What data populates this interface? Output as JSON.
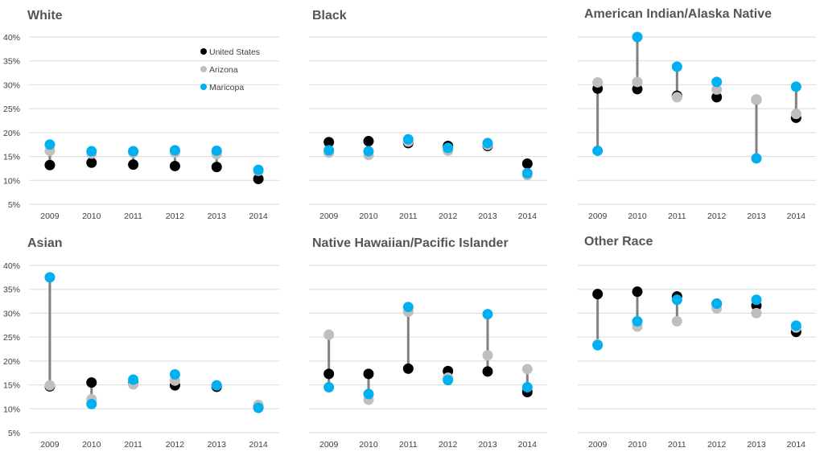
{
  "chart_data": [
    {
      "type": "scatter",
      "title": "White",
      "x": [
        "2009",
        "2010",
        "2011",
        "2012",
        "2013",
        "2014"
      ],
      "y_ticks": [
        "40%",
        "35%",
        "30%",
        "25%",
        "20%",
        "15%",
        "10%",
        "5%"
      ],
      "ylim": [
        5,
        40
      ],
      "series": [
        {
          "name": "United States",
          "values": [
            13.2,
            13.7,
            13.3,
            13.0,
            12.8,
            10.3
          ]
        },
        {
          "name": "Arizona",
          "values": [
            16.2,
            15.6,
            15.8,
            15.8,
            15.5,
            12.0
          ]
        },
        {
          "name": "Maricopa",
          "values": [
            17.5,
            16.1,
            16.1,
            16.3,
            16.2,
            12.2
          ]
        }
      ]
    },
    {
      "type": "scatter",
      "title": "Black",
      "x": [
        "2009",
        "2010",
        "2011",
        "2012",
        "2013",
        "2014"
      ],
      "y_ticks": [
        "40%",
        "35%",
        "30%",
        "25%",
        "20%",
        "15%",
        "10%",
        "5%"
      ],
      "ylim": [
        5,
        40
      ],
      "series": [
        {
          "name": "United States",
          "values": [
            18.0,
            18.2,
            17.8,
            17.2,
            17.2,
            13.5
          ]
        },
        {
          "name": "Arizona",
          "values": [
            15.8,
            15.3,
            18.1,
            16.2,
            17.4,
            11.1
          ]
        },
        {
          "name": "Maricopa",
          "values": [
            16.3,
            16.1,
            18.6,
            16.8,
            17.8,
            11.5
          ]
        }
      ]
    },
    {
      "type": "scatter",
      "title": "American Indian/Alaska Native",
      "x": [
        "2009",
        "2010",
        "2011",
        "2012",
        "2013",
        "2014"
      ],
      "y_ticks": [
        "40%",
        "35%",
        "30%",
        "25%",
        "20%",
        "15%",
        "10%",
        "5%"
      ],
      "ylim": [
        5,
        40
      ],
      "series": [
        {
          "name": "United States",
          "values": [
            29.2,
            29.1,
            27.7,
            27.4,
            26.9,
            23.1
          ]
        },
        {
          "name": "Arizona",
          "values": [
            30.5,
            30.6,
            27.4,
            29.0,
            26.9,
            23.9
          ]
        },
        {
          "name": "Maricopa",
          "values": [
            16.2,
            40.0,
            33.8,
            30.6,
            14.6,
            29.6
          ]
        }
      ]
    },
    {
      "type": "scatter",
      "title": "Asian",
      "x": [
        "2009",
        "2010",
        "2011",
        "2012",
        "2013",
        "2014"
      ],
      "y_ticks": [
        "40%",
        "35%",
        "30%",
        "25%",
        "20%",
        "15%",
        "10%",
        "5%"
      ],
      "ylim": [
        5,
        40
      ],
      "series": [
        {
          "name": "United States",
          "values": [
            14.7,
            15.5,
            15.4,
            14.9,
            14.6,
            10.4
          ]
        },
        {
          "name": "Arizona",
          "values": [
            14.9,
            12.0,
            15.1,
            15.9,
            14.9,
            10.8
          ]
        },
        {
          "name": "Maricopa",
          "values": [
            37.5,
            11.0,
            16.1,
            17.2,
            14.9,
            10.2
          ]
        }
      ]
    },
    {
      "type": "scatter",
      "title": "Native Hawaiian/Pacific Islander",
      "x": [
        "2009",
        "2010",
        "2011",
        "2012",
        "2013",
        "2014"
      ],
      "y_ticks": [
        "40%",
        "35%",
        "30%",
        "25%",
        "20%",
        "15%",
        "10%",
        "5%"
      ],
      "ylim": [
        5,
        40
      ],
      "series": [
        {
          "name": "United States",
          "values": [
            17.3,
            17.3,
            18.4,
            17.9,
            17.8,
            13.5
          ]
        },
        {
          "name": "Arizona",
          "values": [
            25.5,
            11.9,
            30.3,
            16.5,
            21.2,
            18.3
          ]
        },
        {
          "name": "Maricopa",
          "values": [
            14.5,
            13.1,
            31.3,
            16.0,
            29.8,
            14.5
          ]
        }
      ]
    },
    {
      "type": "scatter",
      "title": "Other Race",
      "x": [
        "2009",
        "2010",
        "2011",
        "2012",
        "2013",
        "2014"
      ],
      "y_ticks": [
        "40%",
        "35%",
        "30%",
        "25%",
        "20%",
        "15%",
        "10%",
        "5%"
      ],
      "ylim": [
        5,
        40
      ],
      "series": [
        {
          "name": "United States",
          "values": [
            34.0,
            34.5,
            33.5,
            32.0,
            31.6,
            26.1
          ]
        },
        {
          "name": "Arizona",
          "values": [
            23.5,
            27.2,
            28.3,
            31.0,
            30.0,
            27.0
          ]
        },
        {
          "name": "Maricopa",
          "values": [
            23.3,
            28.3,
            32.8,
            32.0,
            32.8,
            27.4
          ]
        }
      ]
    }
  ],
  "legend": {
    "items": [
      {
        "label": "United States",
        "color": "#000000"
      },
      {
        "label": "Arizona",
        "color": "#bfbfbf"
      },
      {
        "label": "Maricopa",
        "color": "#00b0f0"
      }
    ]
  },
  "colors": {
    "United States": "#000000",
    "Arizona": "#bfbfbf",
    "Maricopa": "#00b0f0",
    "range_line": "#808080",
    "grid": "#d9d9d9",
    "title": "#555555"
  }
}
